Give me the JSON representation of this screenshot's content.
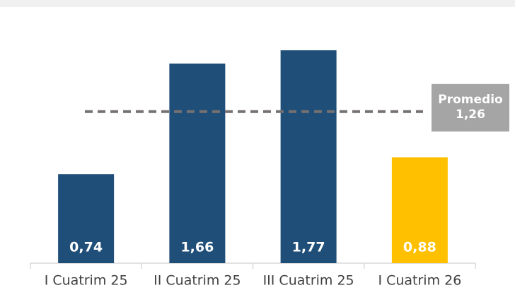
{
  "chart_data": {
    "type": "bar",
    "categories": [
      "I Cuatrim 25",
      "II Cuatrim 25",
      "III Cuatrim 25",
      "I Cuatrim 26"
    ],
    "values": [
      0.74,
      1.66,
      1.77,
      0.88
    ],
    "value_labels": [
      "0,74",
      "1,66",
      "1,77",
      "0,88"
    ],
    "colors": [
      "#1f4e79",
      "#1f4e79",
      "#1f4e79",
      "#ffc000"
    ],
    "ylim": [
      0,
      2
    ],
    "average": {
      "label": "Promedio",
      "value": 1.26,
      "value_label": "1,26",
      "color": "#767171",
      "box_color": "#a5a5a5"
    }
  }
}
